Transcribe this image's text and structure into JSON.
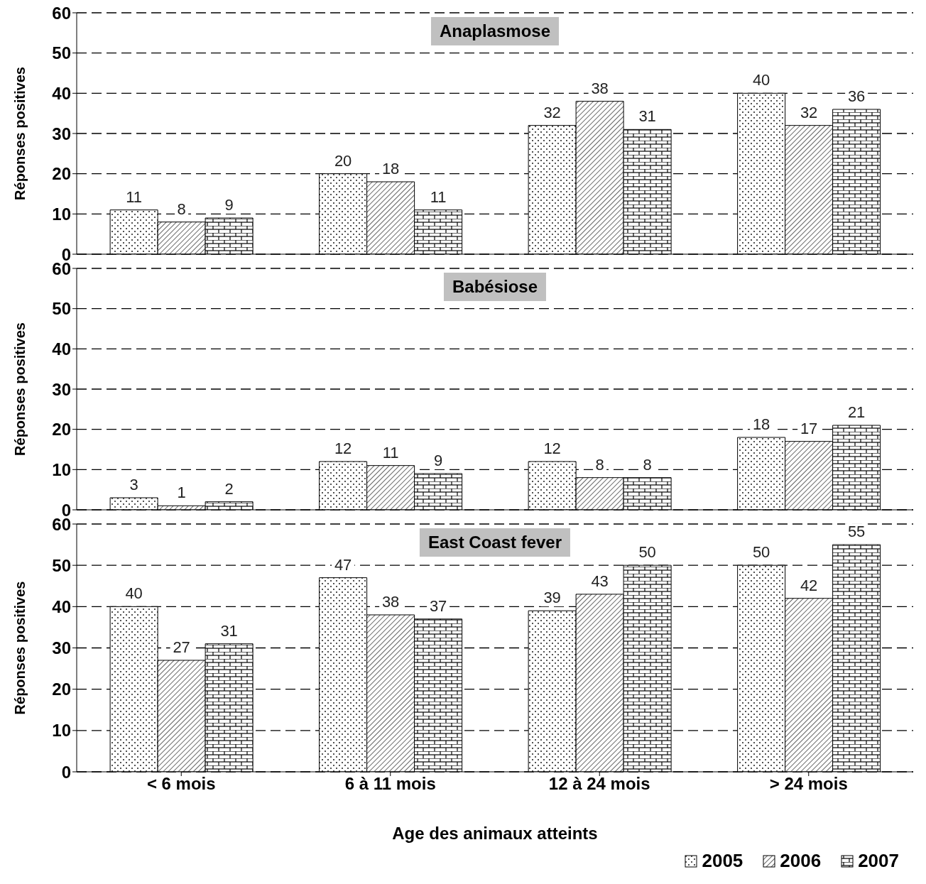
{
  "chart_data": [
    {
      "type": "bar",
      "title": "Anaplasmose",
      "ylabel": "Réponses positives",
      "categories": [
        null,
        null,
        null,
        null
      ],
      "series": [
        {
          "color": "#000000",
          "values": [
            11,
            20,
            32,
            40
          ]
        },
        {
          "color": "#000000",
          "values": [
            8,
            18,
            38,
            32
          ]
        },
        {
          "color": "#000000",
          "values": [
            9,
            11,
            31,
            36
          ]
        }
      ],
      "ylim": [
        0,
        60
      ],
      "yticks": [
        0,
        10,
        20,
        30,
        40,
        50,
        60
      ],
      "grid": "y",
      "line_style": "dashed",
      "data_labels": true,
      "tick_labels": "y"
    },
    {
      "type": "bar",
      "title": "Babésiose",
      "ylabel": "Réponses positives",
      "categories": [
        null,
        null,
        null,
        null
      ],
      "series": [
        {
          "color": "#000000",
          "values": [
            3,
            12,
            12,
            18
          ]
        },
        {
          "color": "#000000",
          "values": [
            1,
            11,
            8,
            17
          ]
        },
        {
          "color": "#000000",
          "values": [
            2,
            9,
            8,
            21
          ]
        }
      ],
      "ylim": [
        0,
        60
      ],
      "yticks": [
        0,
        10,
        20,
        30,
        40,
        50,
        60
      ],
      "grid": "y",
      "line_style": "dashed",
      "data_labels": true,
      "tick_labels": "y"
    },
    {
      "type": "bar",
      "title": "East Coast fever",
      "ylabel": "Réponses positives",
      "xlabel": "Age des animaux atteints",
      "categories": [
        "< 6 mois",
        "6 à 11 mois",
        "12 à 24 mois",
        "> 24 mois"
      ],
      "series": [
        {
          "name": "2005",
          "color": "#000000",
          "values": [
            40,
            47,
            39,
            50
          ]
        },
        {
          "name": "2006",
          "color": "#000000",
          "values": [
            27,
            38,
            43,
            42
          ]
        },
        {
          "name": "2007",
          "color": "#000000",
          "values": [
            31,
            37,
            50,
            55
          ]
        }
      ],
      "ylim": [
        0,
        60
      ],
      "yticks": [
        0,
        10,
        20,
        30,
        40,
        50,
        60
      ],
      "grid": "y",
      "line_style": "dashed",
      "data_labels": true,
      "legend": "bottom right"
    }
  ]
}
